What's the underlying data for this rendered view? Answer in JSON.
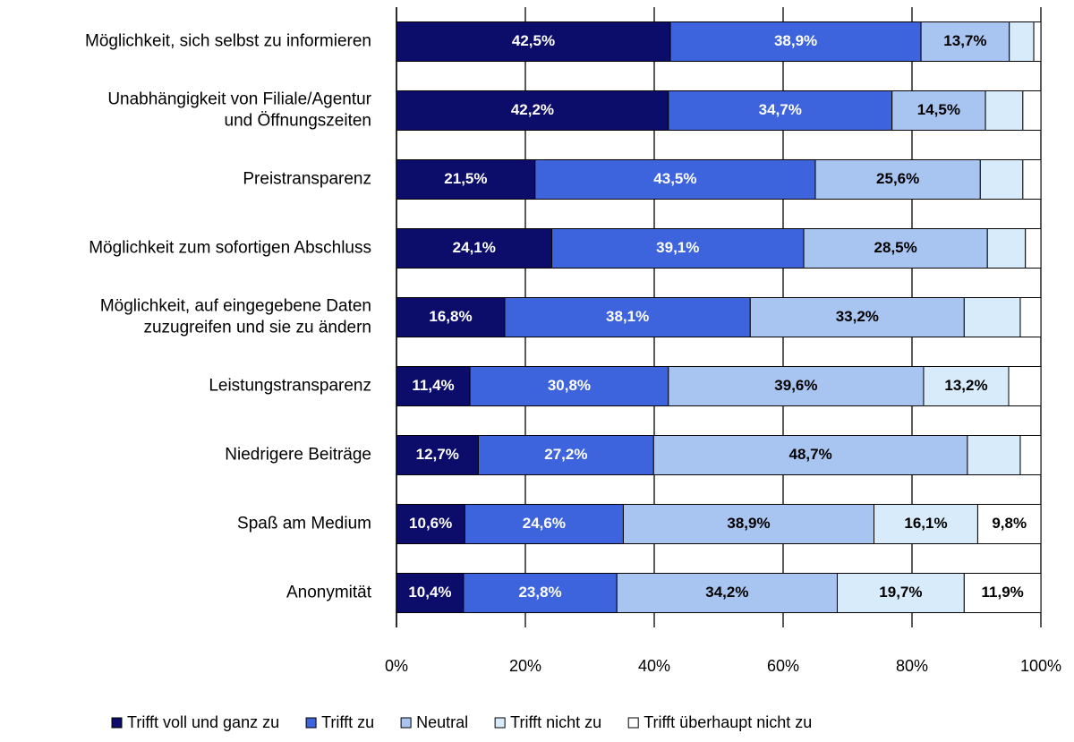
{
  "chart_data": {
    "type": "stacked-barh",
    "categories": [
      [
        "Möglichkeit, sich selbst zu informieren"
      ],
      [
        "Unabhängigkeit von Filiale/Agentur",
        "und Öffnungszeiten"
      ],
      [
        "Preistransparenz"
      ],
      [
        "Möglichkeit zum sofortigen Abschluss"
      ],
      [
        "Möglichkeit, auf eingegebene Daten",
        "zuzugreifen und sie zu ändern"
      ],
      [
        "Leistungstransparenz"
      ],
      [
        "Niedrigere Beiträge"
      ],
      [
        "Spaß am Medium"
      ],
      [
        "Anonymität"
      ]
    ],
    "series": [
      {
        "name": "Trifft voll und ganz zu",
        "color": "#0c0c6a",
        "values": [
          42.5,
          42.2,
          21.5,
          24.1,
          16.8,
          11.4,
          12.7,
          10.6,
          10.4
        ],
        "value_labels": [
          "42,5%",
          "42,2%",
          "21,5%",
          "24,1%",
          "16,8%",
          "11,4%",
          "12,7%",
          "10,6%",
          "10,4%"
        ]
      },
      {
        "name": "Trifft zu",
        "color": "#3d63dd",
        "values": [
          38.9,
          34.7,
          43.5,
          39.1,
          38.1,
          30.8,
          27.2,
          24.6,
          23.8
        ],
        "value_labels": [
          "38,9%",
          "34,7%",
          "43,5%",
          "39,1%",
          "38,1%",
          "30,8%",
          "27,2%",
          "24,6%",
          "23,8%"
        ]
      },
      {
        "name": "Neutral",
        "color": "#a8c4f0",
        "values": [
          13.7,
          14.5,
          25.6,
          28.5,
          33.2,
          39.6,
          48.7,
          38.9,
          34.2
        ],
        "value_labels": [
          "13,7%",
          "14,5%",
          "25,6%",
          "28,5%",
          "33,2%",
          "39,6%",
          "48,7%",
          "38,9%",
          "34,2%"
        ]
      },
      {
        "name": "Trifft nicht zu",
        "color": "#d8ebfb",
        "values": [
          3.8,
          5.8,
          6.6,
          5.9,
          8.7,
          13.2,
          8.2,
          16.1,
          19.7
        ],
        "value_labels": [
          null,
          null,
          null,
          null,
          null,
          "13,2%",
          null,
          "16,1%",
          "19,7%"
        ]
      },
      {
        "name": "Trifft überhaupt nicht zu",
        "color": "#ffffff",
        "values": [
          1.1,
          2.8,
          2.8,
          2.4,
          3.2,
          5.0,
          3.2,
          9.8,
          11.9
        ],
        "value_labels": [
          null,
          null,
          null,
          null,
          null,
          null,
          null,
          "9,8%",
          "11,9%"
        ]
      }
    ],
    "xlim": [
      0,
      100
    ],
    "xticks": [
      {
        "value": 0,
        "label": "0%"
      },
      {
        "value": 20,
        "label": "20%"
      },
      {
        "value": 40,
        "label": "40%"
      },
      {
        "value": 60,
        "label": "60%"
      },
      {
        "value": 80,
        "label": "80%"
      },
      {
        "value": 100,
        "label": "100%"
      }
    ],
    "grid": true,
    "legend": "bottom"
  }
}
